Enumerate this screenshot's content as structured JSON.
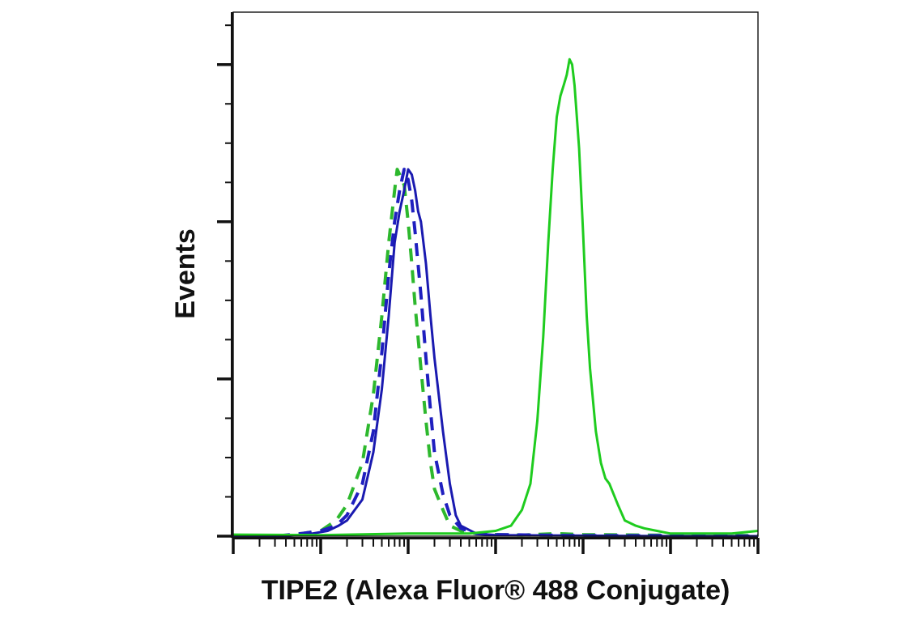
{
  "chart_data": {
    "type": "line",
    "title": "",
    "xlabel": "TIPE2 (Alexa Fluor® 488 Conjugate)",
    "ylabel": "Events",
    "x_scale": "log",
    "xlim": [
      0.1,
      100000
    ],
    "ylim": [
      0,
      100
    ],
    "grid": false,
    "legend": "none",
    "series": [
      {
        "color": "#2db82d",
        "style": "dashed",
        "x": [
          0.1,
          0.2,
          0.4,
          0.6,
          1.0,
          1.5,
          2.0,
          3.0,
          4.0,
          5.0,
          6.0,
          7.0,
          7.5,
          8.0,
          9.0,
          10.0,
          11.0,
          12.0,
          14.0,
          16.0,
          18.0,
          20.0,
          25.0,
          30.0,
          40.0,
          60.0,
          100,
          200,
          500,
          1000,
          5000,
          20000,
          100000
        ],
        "y": [
          0,
          0,
          0,
          0.5,
          1,
          3,
          6,
          14,
          27,
          42,
          56,
          66,
          70,
          69,
          67,
          60,
          52,
          44,
          32,
          22,
          14,
          9,
          5,
          2,
          1,
          0.5,
          0.3,
          0.2,
          0.5,
          0.3,
          0.2,
          0.2,
          0.1
        ]
      },
      {
        "color": "#1f1fbf",
        "style": "dashed",
        "x": [
          0.1,
          0.3,
          0.6,
          1.0,
          1.5,
          2.0,
          3.0,
          4.0,
          5.0,
          6.0,
          7.0,
          8.0,
          9.0,
          10.0,
          11.0,
          12.0,
          14.0,
          16.0,
          18.0,
          20.0,
          25.0,
          30.0,
          40.0,
          60.0,
          100,
          300,
          1000,
          10000,
          100000
        ],
        "y": [
          0,
          0,
          0.5,
          1,
          2,
          4,
          10,
          20,
          35,
          50,
          60,
          66,
          70,
          68,
          64,
          58,
          46,
          34,
          24,
          16,
          8,
          4,
          1.5,
          0.5,
          0.3,
          0.2,
          0.1,
          0.1,
          0
        ]
      },
      {
        "color": "#1a1ab0",
        "style": "solid",
        "x": [
          0.1,
          0.4,
          0.8,
          1.2,
          1.6,
          2.0,
          3.0,
          4.0,
          5.0,
          6.0,
          7.0,
          8.0,
          9.0,
          10.0,
          11.0,
          12.0,
          13.0,
          14.0,
          16.0,
          18.0,
          20.0,
          25.0,
          30.0,
          35.0,
          40.0,
          60.0,
          100,
          1000,
          10000,
          100000
        ],
        "y": [
          0,
          0,
          0.5,
          1,
          2,
          3,
          7,
          16,
          28,
          42,
          56,
          62,
          66,
          70,
          69,
          66,
          62,
          60,
          52,
          42,
          34,
          20,
          10,
          4,
          2,
          0.5,
          0.2,
          0.1,
          0,
          0
        ]
      },
      {
        "color": "#1fcc1f",
        "style": "solid",
        "x": [
          0.1,
          1,
          10,
          50,
          100,
          150,
          200,
          250,
          300,
          350,
          400,
          450,
          500,
          550,
          600,
          650,
          700,
          750,
          800,
          900,
          1000,
          1100,
          1200,
          1400,
          1600,
          1800,
          2000,
          2500,
          3000,
          4000,
          5000,
          7000,
          10000,
          20000,
          50000,
          100000
        ],
        "y": [
          0.3,
          0.2,
          0.5,
          0.5,
          1,
          2,
          5,
          10,
          22,
          38,
          56,
          70,
          80,
          84,
          86,
          88,
          91,
          90,
          86,
          74,
          58,
          42,
          32,
          20,
          14,
          11,
          10,
          6,
          3,
          2,
          1.5,
          1,
          0.5,
          0.5,
          0.5,
          1
        ]
      }
    ]
  }
}
